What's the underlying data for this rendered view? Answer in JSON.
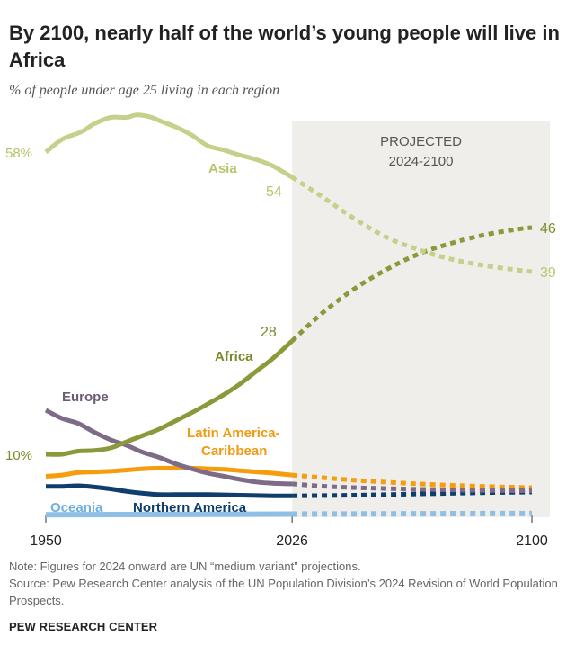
{
  "title": "By 2100, nearly half of the world’s young people will live in Africa",
  "subtitle": "% of people under age 25 living in each region",
  "projection_label": [
    "PROJECTED",
    "2024-2100"
  ],
  "note": "Note: Figures for 2024 onward are UN “medium variant” projections.",
  "source": "Source: Pew Research Center analysis of the UN Population Division’s 2024 Revision of World Population Prospects.",
  "brand": "PEW RESEARCH CENTER",
  "chart_data": {
    "type": "line",
    "x_ticks": [
      1950,
      2026,
      2100
    ],
    "projection_start": 2026,
    "ylim": [
      0,
      62
    ],
    "grid": false,
    "legend": "inline labels",
    "series": [
      {
        "name": "Asia",
        "color": "#c5d08a",
        "label_color": "#b8c46a",
        "historical": [
          [
            1950,
            58
          ],
          [
            1955,
            60
          ],
          [
            1960,
            61
          ],
          [
            1962,
            61.5
          ],
          [
            1965,
            62.5
          ],
          [
            1970,
            63.5
          ],
          [
            1975,
            63.5
          ],
          [
            1978,
            63.9
          ],
          [
            1982,
            63.6
          ],
          [
            1986,
            62.8
          ],
          [
            1990,
            62
          ],
          [
            1995,
            60.7
          ],
          [
            2000,
            59
          ],
          [
            2005,
            58.3
          ],
          [
            2010,
            57.5
          ],
          [
            2015,
            56.8
          ],
          [
            2020,
            55.8
          ],
          [
            2026,
            54
          ]
        ],
        "projected": [
          [
            2026,
            54
          ],
          [
            2035,
            51
          ],
          [
            2045,
            47.5
          ],
          [
            2055,
            44.5
          ],
          [
            2065,
            42.5
          ],
          [
            2075,
            41
          ],
          [
            2085,
            40
          ],
          [
            2095,
            39.3
          ],
          [
            2100,
            39
          ]
        ],
        "start_label": "58%",
        "end_hist_label": "54",
        "end_label": "39"
      },
      {
        "name": "Africa",
        "color": "#8a9a3a",
        "label_color": "#7a8a2a",
        "historical": [
          [
            1950,
            10
          ],
          [
            1955,
            10
          ],
          [
            1960,
            10.5
          ],
          [
            1965,
            10.6
          ],
          [
            1970,
            11
          ],
          [
            1975,
            12
          ],
          [
            1980,
            13
          ],
          [
            1985,
            14
          ],
          [
            1990,
            15.3
          ],
          [
            1995,
            16.6
          ],
          [
            2000,
            18
          ],
          [
            2005,
            19.5
          ],
          [
            2010,
            21.2
          ],
          [
            2015,
            23.2
          ],
          [
            2020,
            25.2
          ],
          [
            2026,
            28
          ]
        ],
        "projected": [
          [
            2026,
            28
          ],
          [
            2035,
            32.3
          ],
          [
            2045,
            36.2
          ],
          [
            2055,
            39.3
          ],
          [
            2065,
            41.8
          ],
          [
            2075,
            43.5
          ],
          [
            2085,
            44.8
          ],
          [
            2095,
            45.7
          ],
          [
            2100,
            46
          ]
        ],
        "start_label": "10%",
        "end_hist_label": "28",
        "end_label": "46"
      },
      {
        "name": "Europe",
        "color": "#7e6b87",
        "label_color": "#6e5b77",
        "historical": [
          [
            1950,
            17
          ],
          [
            1955,
            15.7
          ],
          [
            1960,
            14.9
          ],
          [
            1965,
            13.5
          ],
          [
            1970,
            12.3
          ],
          [
            1975,
            11.4
          ],
          [
            1980,
            10.3
          ],
          [
            1985,
            9.5
          ],
          [
            1990,
            8.5
          ],
          [
            1995,
            7.7
          ],
          [
            2000,
            7
          ],
          [
            2005,
            6.5
          ],
          [
            2010,
            6
          ],
          [
            2015,
            5.6
          ],
          [
            2020,
            5.4
          ],
          [
            2026,
            5.3
          ]
        ],
        "projected": [
          [
            2026,
            5.3
          ],
          [
            2040,
            4.8
          ],
          [
            2060,
            4.5
          ],
          [
            2080,
            4.3
          ],
          [
            2100,
            4.2
          ]
        ]
      },
      {
        "name": "Latin America-Caribbean",
        "label_lines": [
          "Latin America-",
          "Caribbean"
        ],
        "color": "#f59d0c",
        "label_color": "#f09a10",
        "historical": [
          [
            1950,
            6.5
          ],
          [
            1955,
            6.7
          ],
          [
            1960,
            7.1
          ],
          [
            1965,
            7.2
          ],
          [
            1970,
            7.3
          ],
          [
            1975,
            7.5
          ],
          [
            1980,
            7.7
          ],
          [
            1985,
            7.8
          ],
          [
            1990,
            7.8
          ],
          [
            1995,
            7.8
          ],
          [
            2000,
            7.7
          ],
          [
            2005,
            7.6
          ],
          [
            2010,
            7.4
          ],
          [
            2015,
            7.2
          ],
          [
            2020,
            7
          ],
          [
            2026,
            6.7
          ]
        ],
        "projected": [
          [
            2026,
            6.7
          ],
          [
            2045,
            5.9
          ],
          [
            2065,
            5.3
          ],
          [
            2085,
            4.9
          ],
          [
            2100,
            4.7
          ]
        ]
      },
      {
        "name": "Northern America",
        "color": "#0e3d6e",
        "label_color": "#0e3d6e",
        "historical": [
          [
            1950,
            4.9
          ],
          [
            1955,
            4.9
          ],
          [
            1960,
            5
          ],
          [
            1965,
            4.8
          ],
          [
            1970,
            4.5
          ],
          [
            1975,
            4.1
          ],
          [
            1980,
            3.8
          ],
          [
            1985,
            3.6
          ],
          [
            1990,
            3.6
          ],
          [
            1995,
            3.6
          ],
          [
            2000,
            3.6
          ],
          [
            2010,
            3.5
          ],
          [
            2020,
            3.4
          ],
          [
            2026,
            3.4
          ]
        ],
        "projected": [
          [
            2026,
            3.4
          ],
          [
            2045,
            3.5
          ],
          [
            2065,
            3.7
          ],
          [
            2085,
            3.9
          ],
          [
            2100,
            4
          ]
        ]
      },
      {
        "name": "Oceania",
        "color": "#8fbfe5",
        "label_color": "#6faee0",
        "historical": [
          [
            1950,
            0.4
          ],
          [
            1990,
            0.45
          ],
          [
            2026,
            0.5
          ]
        ],
        "projected": [
          [
            2026,
            0.5
          ],
          [
            2100,
            0.6
          ]
        ]
      }
    ]
  }
}
